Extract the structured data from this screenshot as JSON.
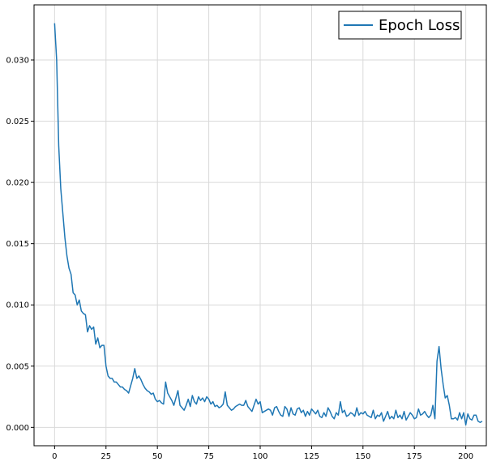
{
  "chart_data": {
    "type": "line",
    "title": "",
    "xlabel": "",
    "ylabel": "",
    "xlim": [
      -10,
      210
    ],
    "ylim": [
      -0.0015,
      0.0345
    ],
    "xticks": [
      0,
      25,
      50,
      75,
      100,
      125,
      150,
      175,
      200
    ],
    "yticks": [
      0.0,
      0.005,
      0.01,
      0.015,
      0.02,
      0.025,
      0.03
    ],
    "ytick_labels": [
      "0.000",
      "0.005",
      "0.010",
      "0.015",
      "0.020",
      "0.025",
      "0.030"
    ],
    "grid": true,
    "legend": {
      "position": "top-right"
    },
    "series": [
      {
        "name": "Epoch Loss",
        "color": "#1f77b4",
        "values": [
          0.033,
          0.03,
          0.023,
          0.0195,
          0.0175,
          0.0155,
          0.014,
          0.013,
          0.0125,
          0.011,
          0.0108,
          0.01,
          0.0104,
          0.0095,
          0.0093,
          0.0092,
          0.0078,
          0.0083,
          0.008,
          0.0082,
          0.0068,
          0.0073,
          0.0065,
          0.0067,
          0.0067,
          0.005,
          0.0042,
          0.004,
          0.004,
          0.0037,
          0.0037,
          0.0035,
          0.0033,
          0.0033,
          0.0031,
          0.003,
          0.0028,
          0.0034,
          0.004,
          0.0048,
          0.004,
          0.0042,
          0.0039,
          0.0035,
          0.0032,
          0.003,
          0.0029,
          0.0027,
          0.0028,
          0.0023,
          0.0021,
          0.0022,
          0.002,
          0.0019,
          0.0037,
          0.0028,
          0.0025,
          0.0022,
          0.0018,
          0.0024,
          0.003,
          0.0018,
          0.0016,
          0.0014,
          0.0018,
          0.0023,
          0.0017,
          0.0026,
          0.0021,
          0.0019,
          0.0025,
          0.0022,
          0.0024,
          0.0021,
          0.0025,
          0.0023,
          0.0019,
          0.0021,
          0.0017,
          0.0018,
          0.0016,
          0.0017,
          0.0019,
          0.0029,
          0.0018,
          0.0016,
          0.0014,
          0.0015,
          0.0017,
          0.0018,
          0.0019,
          0.0018,
          0.0018,
          0.0022,
          0.0017,
          0.0015,
          0.0013,
          0.0018,
          0.0023,
          0.0019,
          0.0021,
          0.0012,
          0.0013,
          0.0014,
          0.0015,
          0.0014,
          0.001,
          0.0016,
          0.0017,
          0.0013,
          0.001,
          0.0009,
          0.0017,
          0.0015,
          0.0009,
          0.0016,
          0.0011,
          0.001,
          0.0015,
          0.0016,
          0.0012,
          0.0014,
          0.0009,
          0.0013,
          0.001,
          0.0015,
          0.0013,
          0.0011,
          0.0014,
          0.0009,
          0.0008,
          0.0012,
          0.0009,
          0.0016,
          0.0013,
          0.0009,
          0.0007,
          0.0012,
          0.001,
          0.0021,
          0.0012,
          0.0014,
          0.0009,
          0.001,
          0.0012,
          0.0011,
          0.0009,
          0.0016,
          0.001,
          0.0012,
          0.0011,
          0.0013,
          0.001,
          0.0009,
          0.0008,
          0.0014,
          0.0007,
          0.001,
          0.0009,
          0.0012,
          0.0005,
          0.0009,
          0.0013,
          0.0007,
          0.0009,
          0.0007,
          0.0014,
          0.0008,
          0.001,
          0.0007,
          0.0013,
          0.0006,
          0.0009,
          0.0012,
          0.001,
          0.0007,
          0.0008,
          0.0015,
          0.001,
          0.0011,
          0.0013,
          0.001,
          0.0008,
          0.001,
          0.0018,
          0.0007,
          0.0054,
          0.0066,
          0.0048,
          0.0035,
          0.0024,
          0.0026,
          0.0018,
          0.0007,
          0.0007,
          0.0008,
          0.0006,
          0.0012,
          0.0007,
          0.0012,
          0.0002,
          0.0011,
          0.0007,
          0.0006,
          0.001,
          0.001,
          0.0005,
          0.0004,
          0.0005
        ]
      }
    ]
  }
}
